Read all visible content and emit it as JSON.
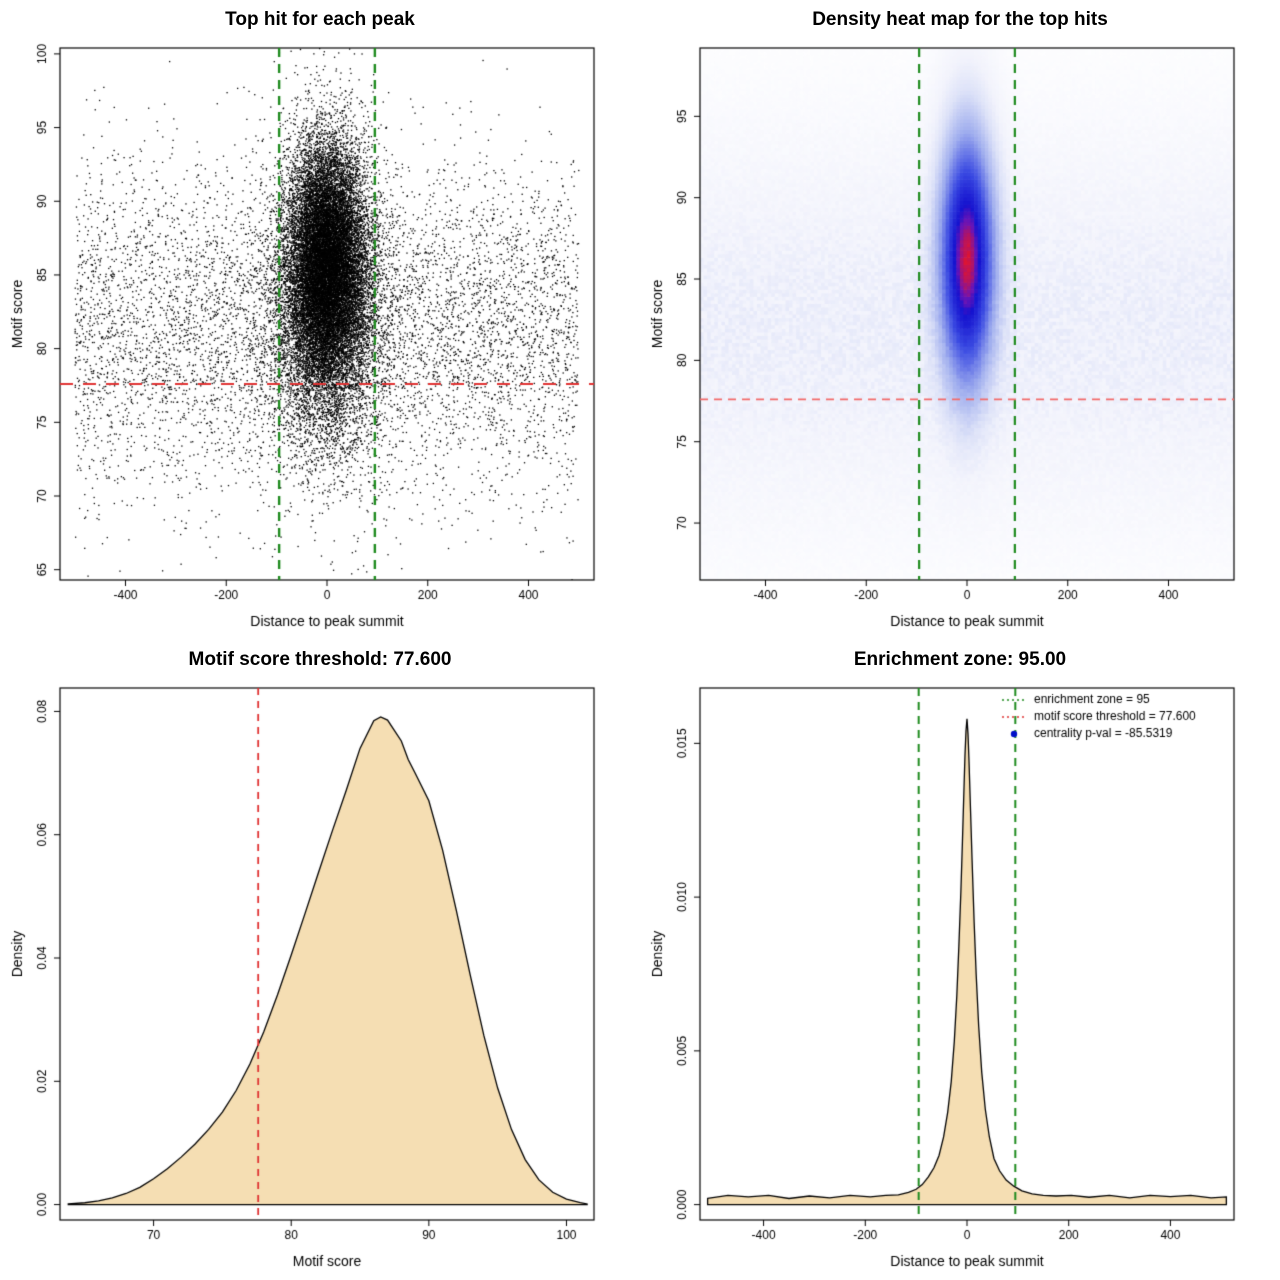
{
  "layout": "2x2-r-base-graphics",
  "chart_data": [
    {
      "type": "scatter",
      "title": "Top hit for each peak",
      "xlabel": "Distance to peak summit",
      "ylabel": "Motif score",
      "xlim": [
        -530,
        530
      ],
      "ylim": [
        64.3,
        100.4
      ],
      "xticks": [
        -400,
        -200,
        0,
        200,
        400
      ],
      "xtick_labels": [
        "-400",
        "-200",
        "0",
        "200",
        "400"
      ],
      "yticks": [
        65,
        70,
        75,
        80,
        85,
        90,
        95,
        100
      ],
      "ytick_labels": [
        "65",
        "70",
        "75",
        "80",
        "85",
        "90",
        "95",
        "100"
      ],
      "point_color": "#000000",
      "point_size": 1.3,
      "seed": 20,
      "clusters": [
        {
          "n": 15000,
          "x_dist": "normal",
          "x_mean": 0,
          "x_sd": 38,
          "y_mean": 85.9,
          "y_sd": 4.0
        },
        {
          "n": 8000,
          "x_dist": "normal",
          "x_mean": 0,
          "x_sd": 55,
          "y_mean": 83.0,
          "y_sd": 5.2
        },
        {
          "n": 6500,
          "x_dist": "uniform",
          "x_min": -500,
          "x_max": 500,
          "y_mean": 81.5,
          "y_sd": 5.6
        }
      ],
      "vlines": [
        {
          "x": -95,
          "color": "#1f8b1f",
          "width": 2.4,
          "dash": [
            9,
            7
          ]
        },
        {
          "x": 95,
          "color": "#1f8b1f",
          "width": 2.4,
          "dash": [
            9,
            7
          ]
        }
      ],
      "hlines": [
        {
          "y": 77.6,
          "color": "#e03232",
          "width": 2.2,
          "dash": [
            13,
            10
          ]
        }
      ]
    },
    {
      "type": "heatmap",
      "title": "Density heat map for the top hits",
      "xlabel": "Distance to peak summit",
      "ylabel": "Motif score",
      "xlim": [
        -530,
        530
      ],
      "ylim": [
        66.5,
        99.2
      ],
      "xticks": [
        -400,
        -200,
        0,
        200,
        400
      ],
      "xtick_labels": [
        "-400",
        "-200",
        "0",
        "200",
        "400"
      ],
      "yticks": [
        70,
        75,
        80,
        85,
        90,
        95
      ],
      "ytick_labels": [
        "70",
        "75",
        "80",
        "85",
        "90",
        "95"
      ],
      "grid": [
        150,
        150
      ],
      "seed": 11,
      "gamma": 0.5,
      "components": [
        {
          "kind": "gauss",
          "weight": 1.0,
          "x_mean": 0,
          "x_sd": 33,
          "y_mean": 86.3,
          "y_sd": 4.7
        },
        {
          "kind": "band",
          "weight": 0.045,
          "y_mean": 82.0,
          "y_sd": 6.5,
          "noise": 0.9
        }
      ],
      "color_stops": [
        {
          "t": 0.0,
          "color": "#ffffff"
        },
        {
          "t": 0.18,
          "color": "#f2f3fc"
        },
        {
          "t": 0.3,
          "color": "#dde2f8"
        },
        {
          "t": 0.5,
          "color": "#9fadee"
        },
        {
          "t": 0.72,
          "color": "#3a4ae2"
        },
        {
          "t": 0.88,
          "color": "#1512cf"
        },
        {
          "t": 0.935,
          "color": "#6d14b4"
        },
        {
          "t": 1.0,
          "color": "#dc1434"
        }
      ],
      "vlines": [
        {
          "x": -95,
          "color": "#1f8b1f",
          "width": 2.2,
          "dash": [
            9,
            7
          ]
        },
        {
          "x": 95,
          "color": "#1f8b1f",
          "width": 2.2,
          "dash": [
            9,
            7
          ]
        }
      ],
      "hlines": [
        {
          "y": 77.6,
          "color": "#f26a6a",
          "width": 1.6,
          "dash": [
            8,
            6
          ]
        }
      ]
    },
    {
      "type": "density",
      "title": "Motif score threshold: 77.600",
      "xlabel": "Motif score",
      "ylabel": "Density",
      "xlim": [
        63.2,
        102
      ],
      "ylim": [
        -0.0025,
        0.0838
      ],
      "xticks": [
        70,
        80,
        90,
        100
      ],
      "xtick_labels": [
        "70",
        "80",
        "90",
        "100"
      ],
      "yticks": [
        0,
        0.02,
        0.04,
        0.06,
        0.08
      ],
      "ytick_labels": [
        "0.00",
        "0.02",
        "0.04",
        "0.06",
        "0.08"
      ],
      "fill_color": "#f5deb3",
      "line_color": "#000000",
      "curve": {
        "x": [
          63.8,
          65,
          66,
          67,
          68,
          69,
          70,
          71,
          72,
          73,
          74,
          75,
          76,
          77,
          78,
          79,
          80,
          81,
          82,
          83,
          84,
          85,
          86,
          86.5,
          87,
          88,
          88.5,
          89,
          90,
          91,
          92,
          93,
          94,
          95,
          96,
          97,
          98,
          99,
          100,
          101,
          101.5
        ],
        "y": [
          0.0001,
          0.0003,
          0.0006,
          0.0011,
          0.0018,
          0.0028,
          0.0042,
          0.0058,
          0.0077,
          0.0098,
          0.0122,
          0.015,
          0.0185,
          0.0228,
          0.028,
          0.034,
          0.0405,
          0.0472,
          0.054,
          0.0607,
          0.0672,
          0.074,
          0.0785,
          0.0791,
          0.0786,
          0.0752,
          0.0722,
          0.07,
          0.0655,
          0.0575,
          0.0477,
          0.0373,
          0.0274,
          0.0189,
          0.0122,
          0.0073,
          0.004,
          0.002,
          0.0009,
          0.0003,
          0.0001
        ]
      },
      "vlines": [
        {
          "x": 77.6,
          "color": "#e03232",
          "width": 1.8,
          "dash": [
            7,
            6
          ]
        }
      ]
    },
    {
      "type": "density",
      "title": "Enrichment zone: 95.00",
      "xlabel": "Distance to peak summit",
      "ylabel": "Density",
      "xlim": [
        -525,
        525
      ],
      "ylim": [
        -0.0005,
        0.0168
      ],
      "xticks": [
        -400,
        -200,
        0,
        200,
        400
      ],
      "xtick_labels": [
        "-400",
        "-200",
        "0",
        "200",
        "400"
      ],
      "yticks": [
        0,
        0.005,
        0.01,
        0.015
      ],
      "ytick_labels": [
        "0.000",
        "0.005",
        "0.010",
        "0.015"
      ],
      "fill_color": "#f5deb3",
      "line_color": "#000000",
      "curve": {
        "x": [
          -510,
          -470,
          -430,
          -390,
          -350,
          -310,
          -270,
          -230,
          -190,
          -160,
          -135,
          -115,
          -100,
          -88,
          -76,
          -65,
          -55,
          -46,
          -38,
          -31,
          -25,
          -20,
          -16,
          -12,
          -9,
          -6,
          -4,
          -2,
          0,
          2,
          4,
          7,
          10,
          14,
          18,
          23,
          29,
          36,
          44,
          53,
          64,
          77,
          92,
          108,
          128,
          150,
          175,
          205,
          240,
          280,
          320,
          360,
          400,
          440,
          480,
          510
        ],
        "y": [
          0.0002,
          0.0003,
          0.00025,
          0.0003,
          0.0002,
          0.00028,
          0.00022,
          0.0003,
          0.00025,
          0.0003,
          0.00032,
          0.0004,
          0.0005,
          0.00065,
          0.0009,
          0.0012,
          0.0016,
          0.0022,
          0.003,
          0.004,
          0.0053,
          0.0068,
          0.0084,
          0.0102,
          0.0118,
          0.0135,
          0.0146,
          0.0154,
          0.0158,
          0.0153,
          0.0144,
          0.0128,
          0.0112,
          0.0092,
          0.0075,
          0.0058,
          0.0043,
          0.0031,
          0.0022,
          0.0015,
          0.0011,
          0.0008,
          0.0006,
          0.00045,
          0.00035,
          0.0003,
          0.00028,
          0.0003,
          0.00024,
          0.0003,
          0.00022,
          0.0003,
          0.00026,
          0.0003,
          0.00022,
          0.00025
        ]
      },
      "vlines": [
        {
          "x": -95,
          "color": "#1f8b1f",
          "width": 2,
          "dash": [
            8,
            6
          ]
        },
        {
          "x": 95,
          "color": "#1f8b1f",
          "width": 2,
          "dash": [
            8,
            6
          ]
        }
      ],
      "legend": {
        "position": "top-right",
        "entries": [
          {
            "label": "enrichment zone = 95",
            "color": "#1f8b1f",
            "symbol": "dotted-line"
          },
          {
            "label": "motif score threshold = 77.600",
            "color": "#e03232",
            "symbol": "dotted-line"
          },
          {
            "label": "centrality p-val = -85.5319",
            "color": "#0010c8",
            "symbol": "point"
          }
        ]
      }
    }
  ]
}
